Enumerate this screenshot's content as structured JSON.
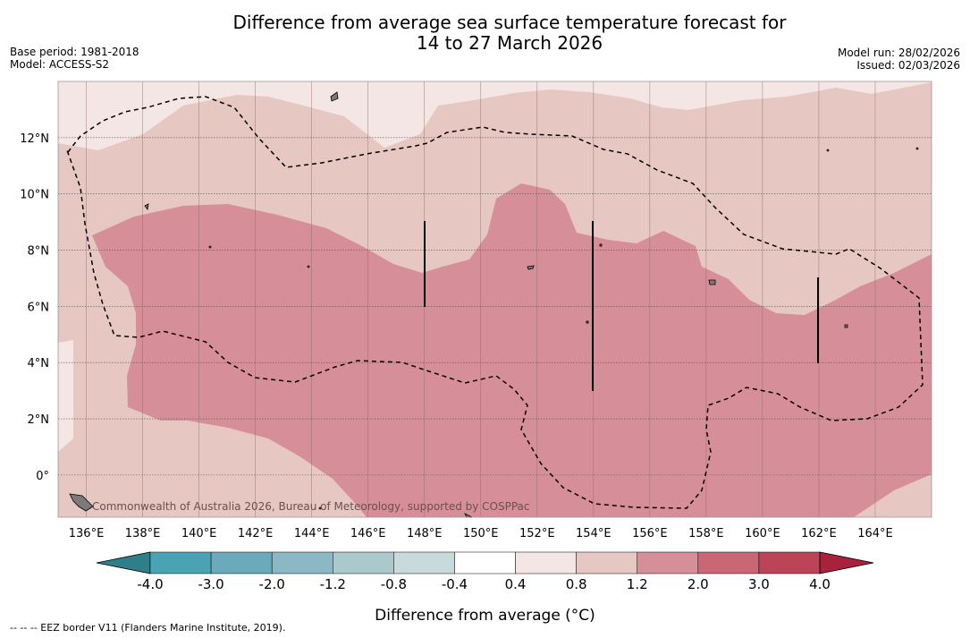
{
  "header": {
    "title_line1": "Difference from average sea surface temperature forecast for",
    "title_line2": "14 to 27 March 2026",
    "base_period": "Base period: 1981-2018",
    "model": "Model: ACCESS-S2",
    "model_run": "Model run: 28/02/2026",
    "issued": "Issued: 02/03/2026"
  },
  "map": {
    "lon_range": [
      135,
      166
    ],
    "lat_range": [
      -1.5,
      14
    ],
    "lon_ticks": [
      {
        "value": 136,
        "label": "136°E"
      },
      {
        "value": 138,
        "label": "138°E"
      },
      {
        "value": 140,
        "label": "140°E"
      },
      {
        "value": 142,
        "label": "142°E"
      },
      {
        "value": 144,
        "label": "144°E"
      },
      {
        "value": 146,
        "label": "146°E"
      },
      {
        "value": 148,
        "label": "148°E"
      },
      {
        "value": 150,
        "label": "150°E"
      },
      {
        "value": 152,
        "label": "152°E"
      },
      {
        "value": 154,
        "label": "154°E"
      },
      {
        "value": 156,
        "label": "156°E"
      },
      {
        "value": 158,
        "label": "158°E"
      },
      {
        "value": 160,
        "label": "160°E"
      },
      {
        "value": 162,
        "label": "162°E"
      },
      {
        "value": 164,
        "label": "164°E"
      }
    ],
    "lat_ticks": [
      {
        "value": 12,
        "label": "12°N"
      },
      {
        "value": 10,
        "label": "10°N"
      },
      {
        "value": 8,
        "label": "8°N"
      },
      {
        "value": 6,
        "label": "6°N"
      },
      {
        "value": 4,
        "label": "4°N"
      },
      {
        "value": 2,
        "label": "2°N"
      },
      {
        "value": 0,
        "label": "0°"
      }
    ],
    "watermark": "Commonwealth of Australia 2026, Bureau of Meteorology, supported by COSPPac",
    "zones": {
      "light": "#f3e6e5",
      "medium": "#e6c7c2",
      "strong": "#d68f98"
    }
  },
  "colorbar": {
    "colors": [
      "#2f7f8a",
      "#4aa3b3",
      "#6aaabb",
      "#8ab8c4",
      "#a9c9cd",
      "#c9dadd",
      "#ffffff",
      "#f3e6e5",
      "#e6c7c2",
      "#d68f98",
      "#c96874",
      "#bc4457",
      "#a8213d"
    ],
    "tick_labels": [
      "-4.0",
      "-3.0",
      "-2.0",
      "-1.2",
      "-0.8",
      "-0.4",
      "0.4",
      "0.8",
      "1.2",
      "2.0",
      "3.0",
      "4.0"
    ],
    "label": "Difference from average (°C)"
  },
  "footer": "--  --  -- EEZ border V11 (Flanders Marine Institute, 2019)."
}
